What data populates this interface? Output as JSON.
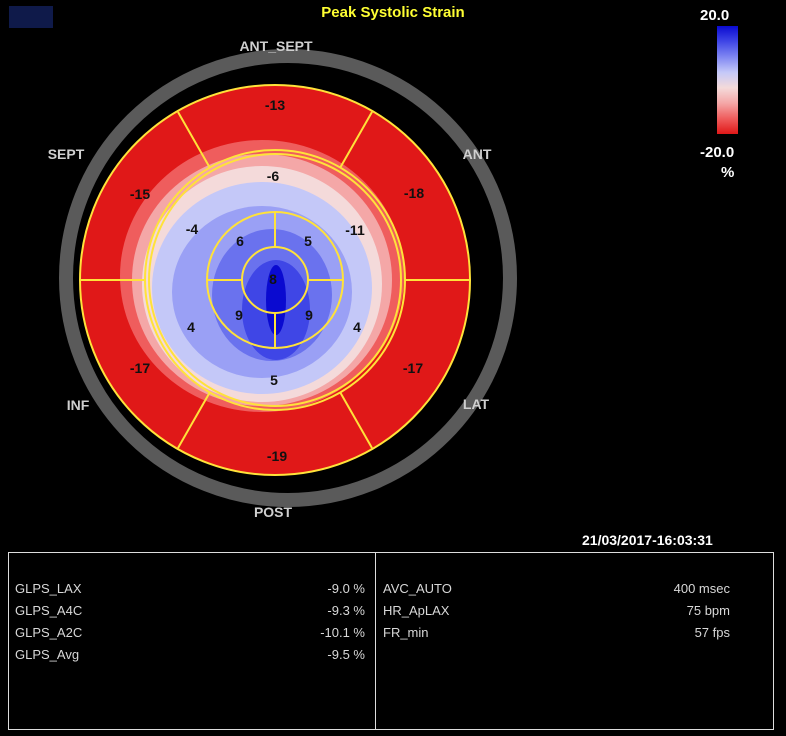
{
  "title": "Peak Systolic Strain",
  "colorbar": {
    "max_label": "20.0",
    "min_label": "-20.0",
    "unit": "%",
    "colors": [
      "#0a0ad0",
      "#3f46e6",
      "#7f86f2",
      "#c4c8f8",
      "#f4dada",
      "#f4a7a7",
      "#ef5d5d",
      "#e01818"
    ]
  },
  "orientation": {
    "anterior_septal": "ANT_SEPT",
    "anterior": "ANT",
    "septal": "SEPT",
    "inferior": "INF",
    "lateral": "LAT",
    "posterior": "POST"
  },
  "segments": {
    "basal": [
      {
        "region": "anterior_septal",
        "value": -13
      },
      {
        "region": "anterior",
        "value": -18
      },
      {
        "region": "lateral",
        "value": -17
      },
      {
        "region": "posterior",
        "value": -19
      },
      {
        "region": "inferior",
        "value": -17
      },
      {
        "region": "septal",
        "value": -15
      }
    ],
    "mid": [
      {
        "region": "anterior_septal",
        "value": -6
      },
      {
        "region": "anterior",
        "value": -11
      },
      {
        "region": "lateral",
        "value": 4
      },
      {
        "region": "posterior",
        "value": 5
      },
      {
        "region": "inferior",
        "value": 4
      },
      {
        "region": "septal",
        "value": -4
      }
    ],
    "apical": [
      {
        "region": "anterior",
        "value": 5
      },
      {
        "region": "lateral",
        "value": 9
      },
      {
        "region": "inferior",
        "value": 9
      },
      {
        "region": "septal",
        "value": 6
      }
    ],
    "apex": {
      "value": 8
    }
  },
  "timestamp": "21/03/2017-16:03:31",
  "measurements_left": [
    {
      "label": "GLPS_LAX",
      "value": "-9.0 %"
    },
    {
      "label": "GLPS_A4C",
      "value": "-9.3 %"
    },
    {
      "label": "GLPS_A2C",
      "value": "-10.1 %"
    },
    {
      "label": "GLPS_Avg",
      "value": "-9.5 %"
    }
  ],
  "measurements_right": [
    {
      "label": "AVC_AUTO",
      "value": "400 msec"
    },
    {
      "label": "HR_ApLAX",
      "value": "75 bpm"
    },
    {
      "label": "FR_min",
      "value": "57 fps"
    }
  ]
}
